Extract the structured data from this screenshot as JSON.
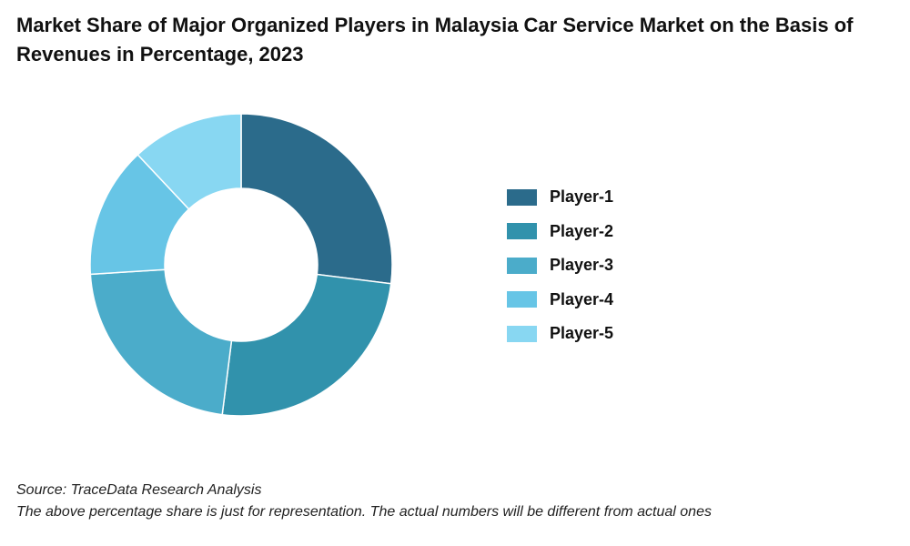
{
  "title": "Market Share of Major Organized Players in Malaysia Car Service Market on the Basis of Revenues in Percentage, 2023",
  "source_note": "Source: TraceData Research Analysis",
  "disclaimer_note": "The above percentage share is just for representation. The actual numbers will be different from actual ones",
  "chart_data": {
    "type": "pie",
    "subtype": "donut",
    "title": "Market Share of Major Organized Players in Malaysia Car Service Market on the Basis of Revenues in Percentage, 2023",
    "categories": [
      "Player-1",
      "Player-2",
      "Player-3",
      "Player-4",
      "Player-5"
    ],
    "values": [
      27,
      25,
      22,
      14,
      12
    ],
    "colors": [
      "#2b6b8b",
      "#3192ac",
      "#4bacca",
      "#67c5e6",
      "#88d7f2"
    ],
    "legend_placement": "right",
    "data_labels_shown": false
  }
}
